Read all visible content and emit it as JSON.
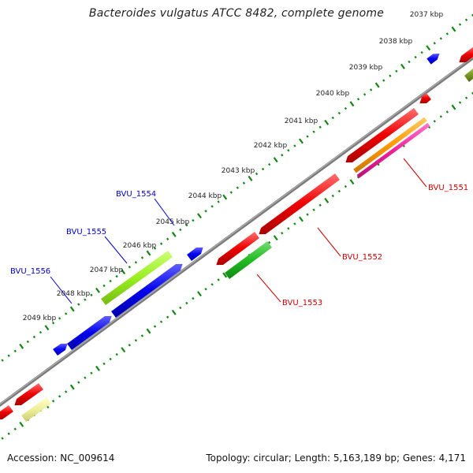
{
  "title": "Bacteroides vulgatus ATCC 8482, complete genome",
  "footer": {
    "accession": "Accession: NC_009614",
    "summary": "Topology: circular; Length: 5,163,189 bp; Genes: 4,171"
  },
  "ticks": [
    "2037 kbp",
    "2038 kbp",
    "2039 kbp",
    "2040 kbp",
    "2041 kbp",
    "2042 kbp",
    "2043 kbp",
    "2044 kbp",
    "2045 kbp",
    "2046 kbp",
    "2047 kbp",
    "2048 kbp",
    "2049 kbp"
  ],
  "genes": {
    "forward": [
      "BVU_1554",
      "BVU_1555",
      "BVU_1556"
    ],
    "reverse": [
      "BVU_1551",
      "BVU_1552",
      "BVU_1553"
    ]
  },
  "colors": {
    "backbone": "#808080",
    "forward_label": "#0000cc",
    "reverse_label": "#cc0000",
    "cds_blue": "#0000ee",
    "cds_red": "#ee0000",
    "cds_green": "#22bb22",
    "cds_lime": "#99ee22",
    "cds_olive": "#779922",
    "cds_orange": "#ff9900",
    "cds_magenta": "#ee2299",
    "cds_khaki": "#eeee99",
    "tick_green": "#118811"
  }
}
